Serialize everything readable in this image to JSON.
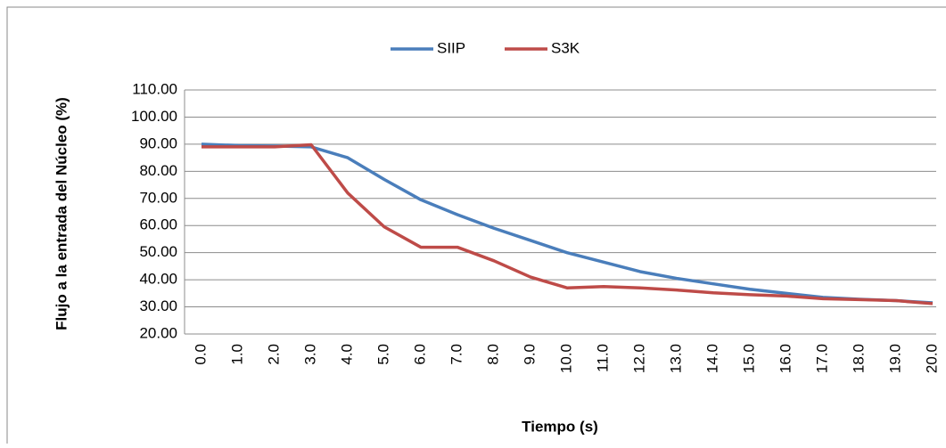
{
  "chart_data": {
    "type": "line",
    "x_label": "Tiempo (s)",
    "y_label": "Flujo a la entrada del Núcleo (%)",
    "categories": [
      "0.0",
      "1.0",
      "2.0",
      "3.0",
      "4.0",
      "5.0",
      "6.0",
      "7.0",
      "8.0",
      "9.0",
      "10.0",
      "11.0",
      "12.0",
      "13.0",
      "14.0",
      "15.0",
      "16.0",
      "17.0",
      "18.0",
      "19.0",
      "20.0"
    ],
    "series": [
      {
        "name": "SIIP",
        "color": "#4a7ebb",
        "values": [
          90,
          89.5,
          89.3,
          89,
          85,
          77,
          69.5,
          64,
          59,
          54.5,
          50,
          46.5,
          43,
          40.5,
          38.5,
          36.5,
          35,
          33.5,
          32.8,
          32.3,
          31.5
        ]
      },
      {
        "name": "S3K",
        "color": "#be4b48",
        "values": [
          89,
          89,
          89,
          89.8,
          72,
          59.5,
          52,
          52,
          47,
          41,
          37,
          37.5,
          37,
          36.2,
          35.2,
          34.5,
          34,
          33,
          32.7,
          32.3,
          31.2
        ]
      }
    ],
    "ylim": [
      20,
      110
    ],
    "yticks": [
      {
        "value": 20,
        "label": "20.00"
      },
      {
        "value": 30,
        "label": "30.00"
      },
      {
        "value": 40,
        "label": "40.00"
      },
      {
        "value": 50,
        "label": "50.00"
      },
      {
        "value": 60,
        "label": "60.00"
      },
      {
        "value": 70,
        "label": "70.00"
      },
      {
        "value": 80,
        "label": "80.00"
      },
      {
        "value": 90,
        "label": "90.00"
      },
      {
        "value": 100,
        "label": "100.00"
      },
      {
        "value": 110,
        "label": "110.00"
      }
    ],
    "grid": true,
    "legend": "top"
  }
}
